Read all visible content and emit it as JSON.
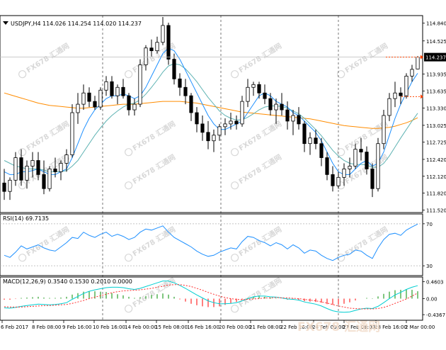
{
  "colors": {
    "background": "#ffffff",
    "frame": "#000000",
    "grid_sep": "#555555",
    "candle": "#000000",
    "ma_fast": "#1e90ff",
    "ma_mid": "#5fb3b3",
    "ma_slow": "#ff8c00",
    "rsi_line": "#1e90ff",
    "rsi_level": "#b0b0b0",
    "macd_main": "#00ced1",
    "macd_signal": "#ff2a2a",
    "hist_up": "#2aa02a",
    "hist_down": "#ff2a2a",
    "price_line": "#ff4500",
    "current_label_bg": "#000000",
    "current_label_fg": "#ffffff",
    "watermark": "#d8d8d8",
    "watermark_cn": "#f0d9c8"
  },
  "chart_data": [
    {
      "type": "candlestick",
      "title": "USDJPY,H4",
      "ohlc_header": "114.026 114.254 114.020 114.237",
      "current_price_label": "114.237",
      "ylim": [
        111.5,
        114.95
      ],
      "y_ticks": [
        "114.840",
        "114.525",
        "114.237",
        "113.935",
        "113.635",
        "113.330",
        "113.025",
        "112.725",
        "112.420",
        "112.120",
        "111.820",
        "111.520"
      ],
      "x_tick_labels": [
        "6 Feb 2017",
        "8 Feb 08:00",
        "9 Feb 16:00",
        "10 Feb 16:00",
        "14 Feb 00:00",
        "15 Feb 08:00",
        "16 Feb 16:00",
        "20 Feb 00:00",
        "21 Feb 08:00",
        "22 Feb 16:00",
        "24 Feb 00:00",
        "27 Feb 08:00",
        "28 Feb 16:00",
        "2 Mar 00:00"
      ],
      "candles": [
        [
          112.0,
          112.25,
          111.7,
          111.85
        ],
        [
          111.85,
          112.1,
          111.7,
          112.05
        ],
        [
          112.05,
          112.55,
          111.95,
          112.45
        ],
        [
          112.45,
          112.6,
          111.95,
          112.05
        ],
        [
          112.05,
          112.4,
          111.9,
          112.3
        ],
        [
          112.3,
          112.55,
          112.1,
          112.4
        ],
        [
          112.4,
          112.55,
          112.05,
          112.15
        ],
        [
          112.15,
          112.4,
          111.8,
          111.9
        ],
        [
          111.9,
          112.3,
          111.85,
          112.25
        ],
        [
          112.25,
          112.45,
          112.1,
          112.2
        ],
        [
          112.2,
          112.4,
          112.05,
          112.35
        ],
        [
          112.35,
          112.6,
          112.2,
          112.5
        ],
        [
          112.5,
          113.4,
          112.45,
          113.25
        ],
        [
          113.25,
          113.6,
          113.05,
          113.4
        ],
        [
          113.4,
          113.75,
          113.3,
          113.6
        ],
        [
          113.6,
          113.7,
          113.35,
          113.45
        ],
        [
          113.45,
          113.55,
          113.3,
          113.35
        ],
        [
          113.35,
          113.7,
          113.3,
          113.65
        ],
        [
          113.65,
          113.9,
          113.55,
          113.8
        ],
        [
          113.8,
          113.9,
          113.5,
          113.55
        ],
        [
          113.55,
          113.75,
          113.4,
          113.7
        ],
        [
          113.7,
          113.85,
          113.5,
          113.55
        ],
        [
          113.55,
          113.6,
          113.2,
          113.3
        ],
        [
          113.3,
          113.5,
          113.2,
          113.4
        ],
        [
          113.4,
          114.2,
          113.35,
          114.1
        ],
        [
          114.1,
          114.45,
          114.0,
          114.4
        ],
        [
          114.4,
          114.55,
          114.25,
          114.35
        ],
        [
          114.35,
          114.6,
          114.3,
          114.5
        ],
        [
          114.5,
          114.95,
          114.45,
          114.8
        ],
        [
          114.8,
          114.85,
          114.1,
          114.2
        ],
        [
          114.2,
          114.3,
          113.75,
          113.85
        ],
        [
          113.85,
          113.95,
          113.55,
          113.7
        ],
        [
          113.7,
          113.85,
          113.4,
          113.55
        ],
        [
          113.55,
          113.6,
          113.1,
          113.25
        ],
        [
          113.25,
          113.35,
          112.9,
          113.05
        ],
        [
          113.05,
          113.2,
          112.75,
          112.9
        ],
        [
          112.9,
          113.1,
          112.6,
          112.75
        ],
        [
          112.75,
          112.95,
          112.55,
          112.85
        ],
        [
          112.85,
          113.05,
          112.75,
          113.0
        ],
        [
          113.0,
          113.15,
          112.85,
          113.05
        ],
        [
          113.05,
          113.25,
          112.95,
          113.1
        ],
        [
          113.1,
          113.2,
          112.95,
          113.05
        ],
        [
          113.05,
          113.55,
          113.0,
          113.45
        ],
        [
          113.45,
          113.85,
          113.35,
          113.7
        ],
        [
          113.7,
          113.8,
          113.55,
          113.75
        ],
        [
          113.75,
          113.8,
          113.5,
          113.6
        ],
        [
          113.6,
          113.75,
          113.4,
          113.5
        ],
        [
          113.5,
          113.6,
          113.2,
          113.3
        ],
        [
          113.3,
          113.5,
          113.05,
          113.4
        ],
        [
          113.4,
          113.6,
          113.2,
          113.3
        ],
        [
          113.3,
          113.45,
          112.95,
          113.1
        ],
        [
          113.1,
          113.3,
          112.85,
          113.2
        ],
        [
          113.2,
          113.35,
          112.95,
          113.05
        ],
        [
          113.05,
          113.1,
          112.55,
          112.7
        ],
        [
          112.7,
          112.9,
          112.5,
          112.8
        ],
        [
          112.8,
          112.95,
          112.6,
          112.7
        ],
        [
          112.7,
          112.8,
          112.3,
          112.45
        ],
        [
          112.45,
          112.55,
          112.05,
          112.15
        ],
        [
          112.15,
          112.3,
          111.85,
          111.95
        ],
        [
          111.95,
          112.2,
          111.9,
          112.1
        ],
        [
          112.1,
          112.35,
          111.95,
          112.25
        ],
        [
          112.25,
          112.45,
          112.1,
          112.3
        ],
        [
          112.3,
          112.7,
          112.25,
          112.6
        ],
        [
          112.6,
          112.8,
          112.4,
          112.55
        ],
        [
          112.55,
          112.65,
          112.15,
          112.25
        ],
        [
          112.25,
          112.35,
          111.75,
          111.9
        ],
        [
          111.9,
          112.8,
          111.85,
          112.7
        ],
        [
          112.7,
          113.3,
          112.6,
          113.2
        ],
        [
          113.2,
          113.6,
          113.1,
          113.5
        ],
        [
          113.5,
          113.8,
          113.35,
          113.6
        ],
        [
          113.6,
          113.7,
          113.4,
          113.55
        ],
        [
          113.55,
          113.95,
          113.5,
          113.9
        ],
        [
          113.9,
          114.1,
          113.8,
          114.02
        ],
        [
          114.026,
          114.254,
          114.02,
          114.237
        ]
      ],
      "ma_fast": [
        112.2,
        112.15,
        112.15,
        112.2,
        112.2,
        112.22,
        112.25,
        112.2,
        112.15,
        112.15,
        112.2,
        112.25,
        112.45,
        112.7,
        112.95,
        113.15,
        113.3,
        113.4,
        113.5,
        113.55,
        113.55,
        113.58,
        113.55,
        113.5,
        113.55,
        113.7,
        113.9,
        114.1,
        114.3,
        114.4,
        114.35,
        114.2,
        114.0,
        113.8,
        113.6,
        113.4,
        113.2,
        113.05,
        112.95,
        112.95,
        113.0,
        113.05,
        113.1,
        113.25,
        113.4,
        113.55,
        113.6,
        113.55,
        113.45,
        113.4,
        113.35,
        113.25,
        113.2,
        113.1,
        113.0,
        112.9,
        112.75,
        112.55,
        112.35,
        112.2,
        112.15,
        112.15,
        112.25,
        112.35,
        112.4,
        112.3,
        112.35,
        112.55,
        112.85,
        113.15,
        113.4,
        113.6,
        113.8,
        113.95
      ],
      "ma_mid": [
        112.4,
        112.35,
        112.3,
        112.28,
        112.25,
        112.25,
        112.25,
        112.23,
        112.2,
        112.2,
        112.2,
        112.22,
        112.3,
        112.4,
        112.55,
        112.7,
        112.85,
        112.98,
        113.1,
        113.2,
        113.28,
        113.35,
        113.4,
        113.42,
        113.48,
        113.58,
        113.7,
        113.83,
        113.97,
        114.08,
        114.12,
        114.1,
        114.03,
        113.92,
        113.8,
        113.66,
        113.52,
        113.4,
        113.28,
        113.2,
        113.15,
        113.12,
        113.12,
        113.17,
        113.23,
        113.3,
        113.35,
        113.37,
        113.37,
        113.36,
        113.33,
        113.28,
        113.23,
        113.15,
        113.05,
        112.95,
        112.84,
        112.71,
        112.58,
        112.48,
        112.4,
        112.35,
        112.33,
        112.33,
        112.32,
        112.28,
        112.28,
        112.35,
        112.48,
        112.64,
        112.8,
        112.95,
        113.1,
        113.24
      ],
      "ma_slow": [
        113.6,
        113.57,
        113.54,
        113.51,
        113.48,
        113.45,
        113.42,
        113.4,
        113.38,
        113.37,
        113.36,
        113.35,
        113.34,
        113.33,
        113.33,
        113.34,
        113.35,
        113.36,
        113.37,
        113.38,
        113.39,
        113.4,
        113.4,
        113.4,
        113.41,
        113.42,
        113.43,
        113.44,
        113.45,
        113.45,
        113.45,
        113.45,
        113.44,
        113.43,
        113.42,
        113.4,
        113.38,
        113.36,
        113.34,
        113.32,
        113.3,
        113.28,
        113.26,
        113.25,
        113.24,
        113.23,
        113.22,
        113.21,
        113.2,
        113.19,
        113.18,
        113.17,
        113.16,
        113.15,
        113.14,
        113.12,
        113.1,
        113.08,
        113.06,
        113.04,
        113.02,
        113.01,
        113.0,
        112.99,
        112.98,
        112.97,
        112.97,
        112.98,
        112.99,
        113.01,
        113.04,
        113.07,
        113.11,
        113.16
      ]
    },
    {
      "type": "line",
      "title": "RSI(14) 69.7135",
      "ylim": [
        22,
        78
      ],
      "levels": [
        70,
        30
      ],
      "y_ticks": [
        "70",
        "30"
      ],
      "values": [
        40,
        38,
        43,
        49,
        46,
        48,
        50,
        47,
        45,
        44,
        48,
        52,
        57,
        56,
        62,
        59,
        57,
        60,
        62,
        58,
        60,
        58,
        55,
        57,
        62,
        65,
        64,
        66,
        68,
        62,
        57,
        54,
        51,
        48,
        44,
        41,
        39,
        40,
        43,
        45,
        47,
        46,
        53,
        58,
        57,
        54,
        52,
        49,
        52,
        50,
        46,
        50,
        47,
        42,
        45,
        44,
        40,
        37,
        35,
        38,
        40,
        41,
        45,
        44,
        40,
        37,
        47,
        55,
        60,
        61,
        59,
        64,
        67,
        69.7
      ]
    },
    {
      "type": "line",
      "title": "MACD(12,26,9) 0.3540 0.1530 0.2010 0.0000",
      "ylim": [
        -0.55,
        0.55
      ],
      "y_ticks": [
        "0.4603",
        "0.00",
        "-0.4367"
      ],
      "main": [
        -0.25,
        -0.26,
        -0.24,
        -0.21,
        -0.19,
        -0.17,
        -0.15,
        -0.16,
        -0.17,
        -0.16,
        -0.14,
        -0.11,
        -0.02,
        0.06,
        0.14,
        0.2,
        0.24,
        0.27,
        0.3,
        0.31,
        0.31,
        0.3,
        0.27,
        0.25,
        0.28,
        0.33,
        0.38,
        0.43,
        0.48,
        0.48,
        0.43,
        0.36,
        0.28,
        0.19,
        0.1,
        0.02,
        -0.06,
        -0.11,
        -0.14,
        -0.14,
        -0.13,
        -0.11,
        -0.06,
        0.0,
        0.05,
        0.07,
        0.07,
        0.05,
        0.04,
        0.02,
        -0.01,
        -0.02,
        -0.04,
        -0.09,
        -0.12,
        -0.15,
        -0.2,
        -0.27,
        -0.33,
        -0.36,
        -0.37,
        -0.36,
        -0.32,
        -0.28,
        -0.26,
        -0.27,
        -0.21,
        -0.11,
        0.0,
        0.1,
        0.17,
        0.25,
        0.31,
        0.354
      ],
      "signal": [
        -0.22,
        -0.23,
        -0.23,
        -0.23,
        -0.22,
        -0.21,
        -0.2,
        -0.19,
        -0.19,
        -0.18,
        -0.17,
        -0.16,
        -0.13,
        -0.09,
        -0.05,
        0.0,
        0.04,
        0.08,
        0.12,
        0.16,
        0.19,
        0.21,
        0.22,
        0.23,
        0.24,
        0.26,
        0.28,
        0.31,
        0.34,
        0.37,
        0.38,
        0.38,
        0.36,
        0.33,
        0.28,
        0.23,
        0.17,
        0.12,
        0.07,
        0.03,
        0.0,
        -0.02,
        -0.03,
        -0.02,
        -0.01,
        0.0,
        0.02,
        0.02,
        0.03,
        0.02,
        0.02,
        0.01,
        0.0,
        -0.02,
        -0.04,
        -0.06,
        -0.09,
        -0.12,
        -0.16,
        -0.2,
        -0.23,
        -0.26,
        -0.27,
        -0.28,
        -0.28,
        -0.28,
        -0.27,
        -0.24,
        -0.19,
        -0.13,
        -0.07,
        -0.01,
        0.07,
        0.153
      ],
      "histogram": [
        -0.03,
        -0.03,
        -0.01,
        0.02,
        0.03,
        0.04,
        0.05,
        0.03,
        0.02,
        0.02,
        0.03,
        0.05,
        0.11,
        0.15,
        0.19,
        0.2,
        0.2,
        0.19,
        0.18,
        0.15,
        0.12,
        0.09,
        0.05,
        0.02,
        0.04,
        0.07,
        0.1,
        0.12,
        0.14,
        0.11,
        0.05,
        -0.02,
        -0.08,
        -0.14,
        -0.18,
        -0.21,
        -0.23,
        -0.23,
        -0.21,
        -0.17,
        -0.13,
        -0.09,
        -0.03,
        0.02,
        0.06,
        0.07,
        0.05,
        0.03,
        0.01,
        0.0,
        -0.03,
        -0.03,
        -0.04,
        -0.07,
        -0.08,
        -0.09,
        -0.11,
        -0.15,
        -0.17,
        -0.16,
        -0.14,
        -0.1,
        -0.05,
        0.0,
        0.02,
        0.01,
        0.06,
        0.13,
        0.19,
        0.23,
        0.24,
        0.26,
        0.24,
        0.201
      ]
    }
  ],
  "watermarks": [
    "FX678 汇通网",
    "FX678 汇通网",
    "FX678 汇通网",
    "FX678 汇通网",
    "FX678 汇通网",
    "FX678 汇通网",
    "FX678 汇通网",
    "FX678 汇通网",
    "FX678 汇通网",
    "FX678 汇通网",
    "FX678 汇通网",
    "FX678 汇通网",
    "FX678 汇通网",
    "FX678 汇通网",
    "FX678 汇通网",
    "FX678 汇通网",
    "FX678 汇通网",
    "FX678 汇通网"
  ],
  "brand_watermark": "FX678 汇通网"
}
